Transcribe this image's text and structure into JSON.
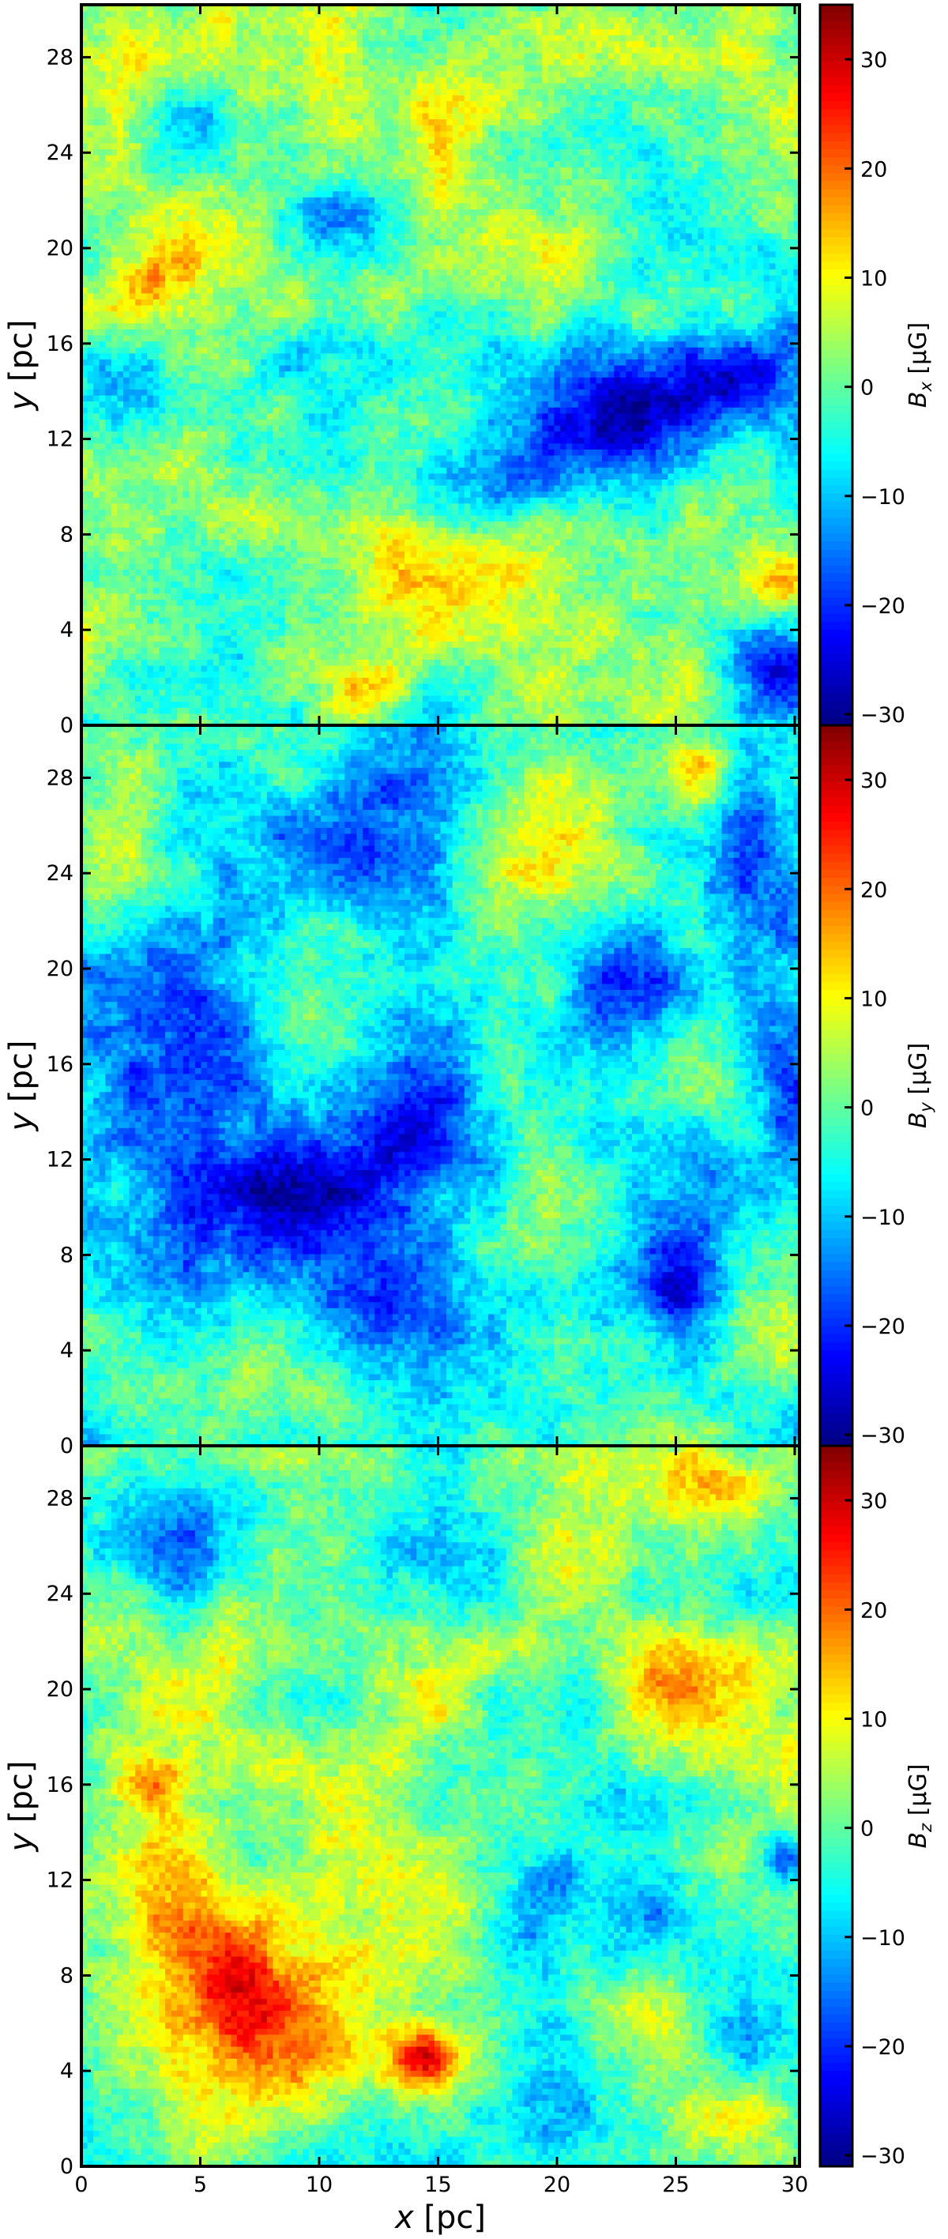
{
  "chart_data": [
    {
      "type": "heatmap",
      "quantity": "Bx",
      "xlabel": "x [pc]",
      "ylabel": "y [pc]",
      "colorbar_label": {
        "main": "B",
        "sub": "x",
        "unit": " [μG]"
      },
      "xlim": [
        0,
        30.2
      ],
      "ylim": [
        0,
        30.2
      ],
      "clim": [
        -31,
        35
      ],
      "colormap": "jet",
      "xticks": [
        0,
        5,
        10,
        15,
        20,
        25,
        30
      ],
      "xtick_labels": [
        "",
        "",
        "",
        "",
        "",
        "",
        ""
      ],
      "yticks": [
        0,
        4,
        8,
        12,
        16,
        20,
        24,
        28
      ],
      "ytick_labels": [
        "0",
        "4",
        "8",
        "12",
        "16",
        "20",
        "24",
        "28"
      ],
      "colorbar_ticks": [
        -30,
        -20,
        -10,
        0,
        10,
        20,
        30
      ],
      "colorbar_tick_labels": [
        "−30",
        "−20",
        "−10",
        "0",
        "10",
        "20",
        "30"
      ],
      "grid": {
        "nx": 120,
        "ny": 120,
        "mean": 1,
        "amplitude": 14,
        "seed": 11
      },
      "features": [
        {
          "x": 26,
          "y": 14.5,
          "sx": 3.5,
          "sy": 1.5,
          "value": -24
        },
        {
          "x": 22,
          "y": 12,
          "sx": 2.5,
          "sy": 1.5,
          "value": -20
        },
        {
          "x": 17.5,
          "y": 10,
          "sx": 2.5,
          "sy": 1.2,
          "value": -14
        },
        {
          "x": 11,
          "y": 21,
          "sx": 2,
          "sy": 1.2,
          "value": -16
        },
        {
          "x": 4.5,
          "y": 25.5,
          "sx": 1.2,
          "sy": 1,
          "value": -14
        },
        {
          "x": 2,
          "y": 14,
          "sx": 2.5,
          "sy": 1.5,
          "value": -14
        },
        {
          "x": 29,
          "y": 2.5,
          "sx": 1.5,
          "sy": 1.5,
          "value": -18
        },
        {
          "x": 12,
          "y": 1.5,
          "sx": 1.2,
          "sy": 1,
          "value": 14
        },
        {
          "x": 2.5,
          "y": 18.5,
          "sx": 1.5,
          "sy": 1.2,
          "value": 12
        },
        {
          "x": 14,
          "y": 5.5,
          "sx": 6,
          "sy": 2,
          "value": 8
        },
        {
          "x": 8,
          "y": 26,
          "sx": 5,
          "sy": 2,
          "value": 8
        },
        {
          "x": 20,
          "y": 28.5,
          "sx": 4,
          "sy": 1.5,
          "value": 7
        },
        {
          "x": 29.5,
          "y": 6,
          "sx": 1,
          "sy": 1,
          "value": 12
        }
      ]
    },
    {
      "type": "heatmap",
      "quantity": "By",
      "xlabel": "x [pc]",
      "ylabel": "y [pc]",
      "colorbar_label": {
        "main": "B",
        "sub": "y",
        "unit": " [μG]"
      },
      "xlim": [
        0,
        30.2
      ],
      "ylim": [
        0,
        30.2
      ],
      "clim": [
        -31,
        35
      ],
      "colormap": "jet",
      "xticks": [
        0,
        5,
        10,
        15,
        20,
        25,
        30
      ],
      "xtick_labels": [
        "",
        "",
        "",
        "",
        "",
        "",
        ""
      ],
      "yticks": [
        0,
        4,
        8,
        12,
        16,
        20,
        24,
        28
      ],
      "ytick_labels": [
        "0",
        "4",
        "8",
        "12",
        "16",
        "20",
        "24",
        "28"
      ],
      "colorbar_ticks": [
        -30,
        -20,
        -10,
        0,
        10,
        20,
        30
      ],
      "colorbar_tick_labels": [
        "−30",
        "−20",
        "−10",
        "0",
        "10",
        "20",
        "30"
      ],
      "grid": {
        "nx": 120,
        "ny": 120,
        "mean": -5,
        "amplitude": 13,
        "seed": 23
      },
      "features": [
        {
          "x": 4.5,
          "y": 16.5,
          "sx": 2.5,
          "sy": 2.5,
          "value": -18
        },
        {
          "x": 9,
          "y": 10.5,
          "sx": 4,
          "sy": 3,
          "value": -16
        },
        {
          "x": 14.5,
          "y": 14,
          "sx": 2,
          "sy": 3,
          "value": -18
        },
        {
          "x": 13.5,
          "y": 25,
          "sx": 2,
          "sy": 3,
          "value": -16
        },
        {
          "x": 11.5,
          "y": 5,
          "sx": 2,
          "sy": 2,
          "value": -16
        },
        {
          "x": 23,
          "y": 19,
          "sx": 1.5,
          "sy": 2,
          "value": -12
        },
        {
          "x": 28,
          "y": 24.5,
          "sx": 1.2,
          "sy": 2,
          "value": -14
        },
        {
          "x": 25,
          "y": 6.5,
          "sx": 1.2,
          "sy": 1.5,
          "value": -14
        },
        {
          "x": 29.5,
          "y": 16,
          "sx": 1,
          "sy": 2,
          "value": -12
        },
        {
          "x": 20.5,
          "y": 26,
          "sx": 4,
          "sy": 3,
          "value": 12
        },
        {
          "x": 8,
          "y": 3.5,
          "sx": 4,
          "sy": 2,
          "value": 10
        },
        {
          "x": 19.5,
          "y": 11,
          "sx": 2.5,
          "sy": 3,
          "value": 8
        },
        {
          "x": 26,
          "y": 28.5,
          "sx": 1,
          "sy": 1.2,
          "value": 14
        },
        {
          "x": 1.5,
          "y": 25,
          "sx": 2,
          "sy": 3,
          "value": 6
        },
        {
          "x": 28,
          "y": 4,
          "sx": 2.5,
          "sy": 2,
          "value": 8
        }
      ]
    },
    {
      "type": "heatmap",
      "quantity": "Bz",
      "xlabel": "x [pc]",
      "ylabel": "y [pc]",
      "colorbar_label": {
        "main": "B",
        "sub": "z",
        "unit": " [μG]"
      },
      "xlim": [
        0,
        30.2
      ],
      "ylim": [
        0,
        30.2
      ],
      "clim": [
        -31,
        35
      ],
      "colormap": "jet",
      "xticks": [
        0,
        5,
        10,
        15,
        20,
        25,
        30
      ],
      "xtick_labels": [
        "0",
        "5",
        "10",
        "15",
        "20",
        "25",
        "30"
      ],
      "yticks": [
        0,
        4,
        8,
        12,
        16,
        20,
        24,
        28
      ],
      "ytick_labels": [
        "0",
        "4",
        "8",
        "12",
        "16",
        "20",
        "24",
        "28"
      ],
      "colorbar_ticks": [
        -30,
        -20,
        -10,
        0,
        10,
        20,
        30
      ],
      "colorbar_tick_labels": [
        "−30",
        "−20",
        "−10",
        "0",
        "10",
        "20",
        "30"
      ],
      "grid": {
        "nx": 120,
        "ny": 120,
        "mean": 2,
        "amplitude": 13,
        "seed": 37
      },
      "features": [
        {
          "x": 7,
          "y": 8,
          "sx": 2.5,
          "sy": 2,
          "value": 20
        },
        {
          "x": 4,
          "y": 12.5,
          "sx": 1.5,
          "sy": 3,
          "value": 14
        },
        {
          "x": 14.5,
          "y": 4.5,
          "sx": 1,
          "sy": 1,
          "value": 22
        },
        {
          "x": 3,
          "y": 16,
          "sx": 1,
          "sy": 0.8,
          "value": 14
        },
        {
          "x": 8,
          "y": 5,
          "sx": 3,
          "sy": 1.5,
          "value": 12
        },
        {
          "x": 25.5,
          "y": 20.5,
          "sx": 2,
          "sy": 1.5,
          "value": 12
        },
        {
          "x": 28.5,
          "y": 2,
          "sx": 1.5,
          "sy": 1,
          "value": 10
        },
        {
          "x": 26.5,
          "y": 28.5,
          "sx": 2,
          "sy": 1,
          "value": 10
        },
        {
          "x": 3.5,
          "y": 26,
          "sx": 2.5,
          "sy": 1.5,
          "value": -18
        },
        {
          "x": 18,
          "y": 10,
          "sx": 1.5,
          "sy": 1.5,
          "value": -14
        },
        {
          "x": 20,
          "y": 12,
          "sx": 1,
          "sy": 1.2,
          "value": -12
        },
        {
          "x": 24,
          "y": 10.5,
          "sx": 1.5,
          "sy": 1.5,
          "value": -12
        },
        {
          "x": 22,
          "y": 15.5,
          "sx": 2,
          "sy": 1.5,
          "value": -10
        },
        {
          "x": 28,
          "y": 6,
          "sx": 1.2,
          "sy": 1.2,
          "value": -14
        },
        {
          "x": 20,
          "y": 2.5,
          "sx": 1.5,
          "sy": 2,
          "value": -12
        },
        {
          "x": 16,
          "y": 26,
          "sx": 4,
          "sy": 2,
          "value": -8
        },
        {
          "x": 29.5,
          "y": 13,
          "sx": 0.8,
          "sy": 1,
          "value": -16
        }
      ]
    }
  ]
}
